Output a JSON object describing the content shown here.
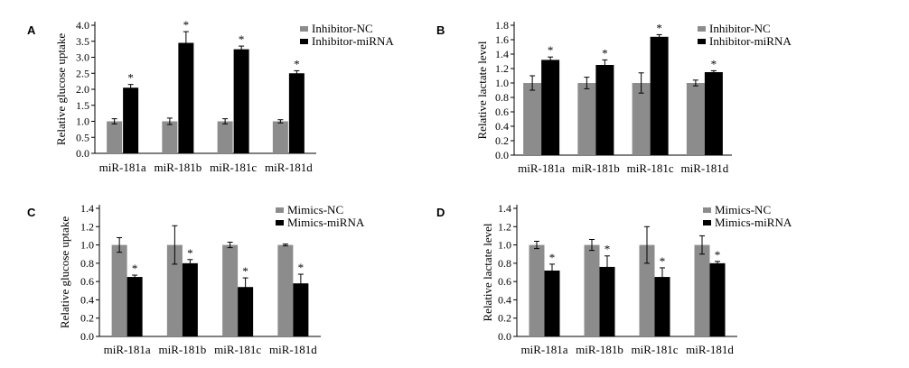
{
  "colors": {
    "control": "#8c8c8c",
    "treated": "#000000",
    "axis": "#000000"
  },
  "chart_data": [
    {
      "panel": "A",
      "type": "bar",
      "categories": [
        "miR-181a",
        "miR-181b",
        "miR-181c",
        "miR-181d"
      ],
      "ylabel": "Relative glucose uptake",
      "xlabel": "",
      "ylim": [
        0,
        4.0
      ],
      "yticks": [
        0.0,
        0.5,
        1.0,
        1.5,
        2.0,
        2.5,
        3.0,
        3.5,
        4.0
      ],
      "ytick_labels": [
        "0.0",
        "0.5",
        "1.0",
        "1.5",
        "2.0",
        "2.5",
        "3.0",
        "3.5",
        "4.0"
      ],
      "legend_position": "top-right",
      "series": [
        {
          "name": "Inhibitor-NC",
          "values": [
            1.0,
            1.0,
            1.0,
            1.0
          ],
          "errors": [
            0.08,
            0.1,
            0.08,
            0.05
          ]
        },
        {
          "name": "Inhibitor-miRNA",
          "values": [
            2.05,
            3.45,
            3.25,
            2.5
          ],
          "errors": [
            0.1,
            0.35,
            0.1,
            0.08
          ]
        }
      ],
      "annotations": [
        "*",
        "*",
        "*",
        "*"
      ]
    },
    {
      "panel": "B",
      "type": "bar",
      "categories": [
        "miR-181a",
        "miR-181b",
        "miR-181c",
        "miR-181d"
      ],
      "ylabel": "Relative lactate level",
      "xlabel": "",
      "ylim": [
        0,
        1.8
      ],
      "yticks": [
        0.0,
        0.2,
        0.4,
        0.6,
        0.8,
        1.0,
        1.2,
        1.4,
        1.6,
        1.8
      ],
      "ytick_labels": [
        "0.0",
        "0.2",
        "0.4",
        "0.6",
        "0.8",
        "1.0",
        "1.2",
        "1.4",
        "1.6",
        "1.8"
      ],
      "legend_position": "top-right",
      "series": [
        {
          "name": "Inhibitor-NC",
          "values": [
            1.0,
            1.0,
            1.0,
            1.0
          ],
          "errors": [
            0.1,
            0.08,
            0.14,
            0.04
          ]
        },
        {
          "name": "Inhibitor-miRNA",
          "values": [
            1.32,
            1.25,
            1.64,
            1.15
          ],
          "errors": [
            0.04,
            0.07,
            0.03,
            0.02
          ]
        }
      ],
      "annotations": [
        "*",
        "*",
        "*",
        "*"
      ]
    },
    {
      "panel": "C",
      "type": "bar",
      "categories": [
        "miR-181a",
        "miR-181b",
        "miR-181c",
        "miR-181d"
      ],
      "ylabel": "Relative glucose uptake",
      "xlabel": "",
      "ylim": [
        0,
        1.4
      ],
      "yticks": [
        0.0,
        0.2,
        0.4,
        0.6,
        0.8,
        1.0,
        1.2,
        1.4
      ],
      "ytick_labels": [
        "0.0",
        "0.2",
        "0.4",
        "0.6",
        "0.8",
        "1.0",
        "1.2",
        "1.4"
      ],
      "legend_position": "top-right",
      "series": [
        {
          "name": "Mimics-NC",
          "values": [
            1.0,
            1.0,
            1.0,
            1.0
          ],
          "errors": [
            0.08,
            0.21,
            0.03,
            0.01
          ]
        },
        {
          "name": "Mimics-miRNA",
          "values": [
            0.65,
            0.8,
            0.54,
            0.58
          ],
          "errors": [
            0.02,
            0.04,
            0.1,
            0.1
          ]
        }
      ],
      "annotations": [
        "*",
        "*",
        "*",
        "*"
      ]
    },
    {
      "panel": "D",
      "type": "bar",
      "categories": [
        "miR-181a",
        "miR-181b",
        "miR-181c",
        "miR-181d"
      ],
      "ylabel": "Relative lactate level",
      "xlabel": "",
      "ylim": [
        0,
        1.4
      ],
      "yticks": [
        0.0,
        0.2,
        0.4,
        0.6,
        0.8,
        1.0,
        1.2,
        1.4
      ],
      "ytick_labels": [
        "0.0",
        "0.2",
        "0.4",
        "0.6",
        "0.8",
        "1.0",
        "1.2",
        "1.4"
      ],
      "legend_position": "top-right",
      "series": [
        {
          "name": "Mimics-NC",
          "values": [
            1.0,
            1.0,
            1.0,
            1.0
          ],
          "errors": [
            0.04,
            0.06,
            0.2,
            0.1
          ]
        },
        {
          "name": "Mimics-miRNA",
          "values": [
            0.72,
            0.76,
            0.65,
            0.8
          ],
          "errors": [
            0.07,
            0.12,
            0.1,
            0.02
          ]
        }
      ],
      "annotations": [
        "*",
        "*",
        "*",
        "*"
      ]
    }
  ]
}
